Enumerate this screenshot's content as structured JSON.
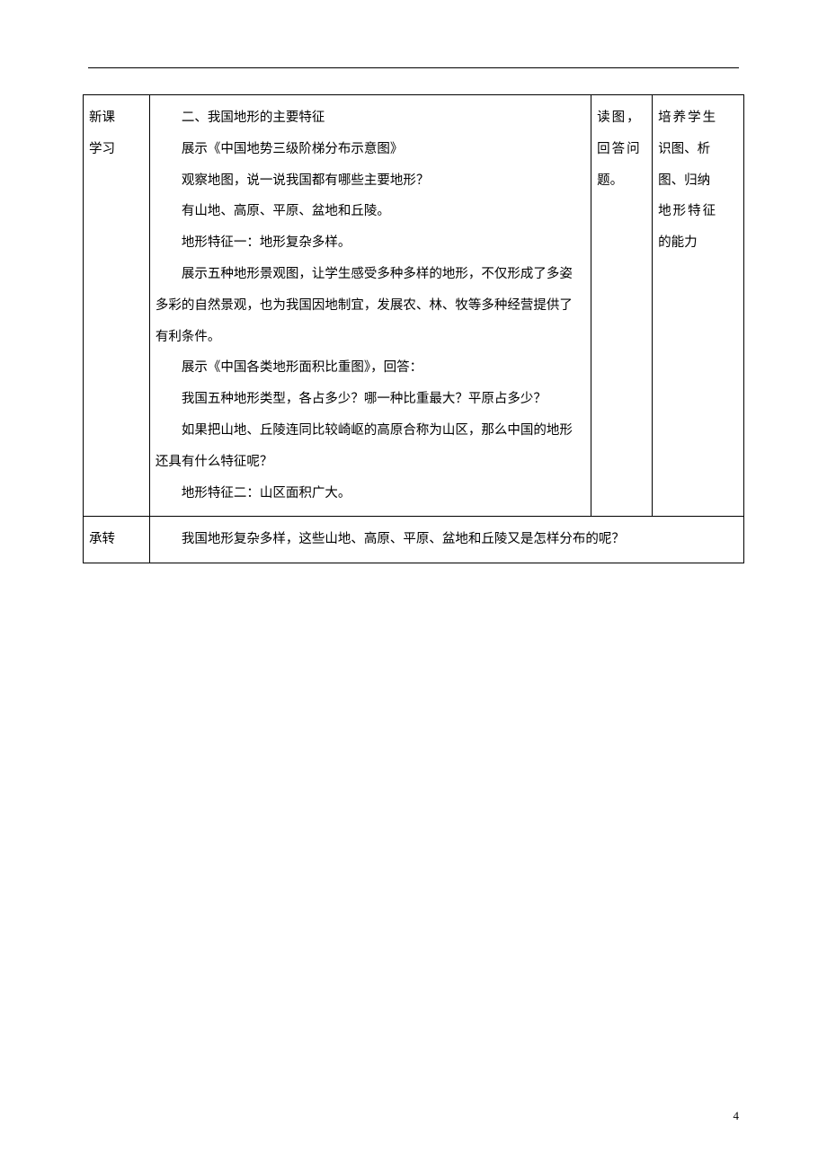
{
  "table": {
    "row1": {
      "col1_line1": "新课",
      "col1_line2": "学习",
      "col2": {
        "p1": "二、我国地形的主要特征",
        "p2": "展示《中国地势三级阶梯分布示意图》",
        "p3": "观察地图，说一说我国都有哪些主要地形？",
        "p4": "有山地、高原、平原、盆地和丘陵。",
        "p5": "地形特征一：地形复杂多样。",
        "p6": "展示五种地形景观图，让学生感受多种多样的地形，不仅形成了多姿多彩的自然景观，也为我国因地制宜，发展农、林、牧等多种经营提供了有利条件。",
        "p7": "展示《中国各类地形面积比重图》，回答：",
        "p8": "我国五种地形类型，各占多少？哪一种比重最大？平原占多少？",
        "p9": "如果把山地、丘陵连同比较崎岖的高原合称为山区，那么中国的地形还具有什么特征呢？",
        "p10": "地形特征二：山区面积广大。"
      },
      "col3_line1": "读图，",
      "col3_line2": "回答问",
      "col3_line3": "题。",
      "col4_line1": "培养学生",
      "col4_line2": "识图、析",
      "col4_line3": "图、归纳",
      "col4_line4": "地形特征",
      "col4_line5": "的能力"
    },
    "row2": {
      "col1": "承转",
      "col2": "我国地形复杂多样，这些山地、高原、平原、盆地和丘陵又是怎样分布的呢？"
    }
  },
  "page_number": "4"
}
